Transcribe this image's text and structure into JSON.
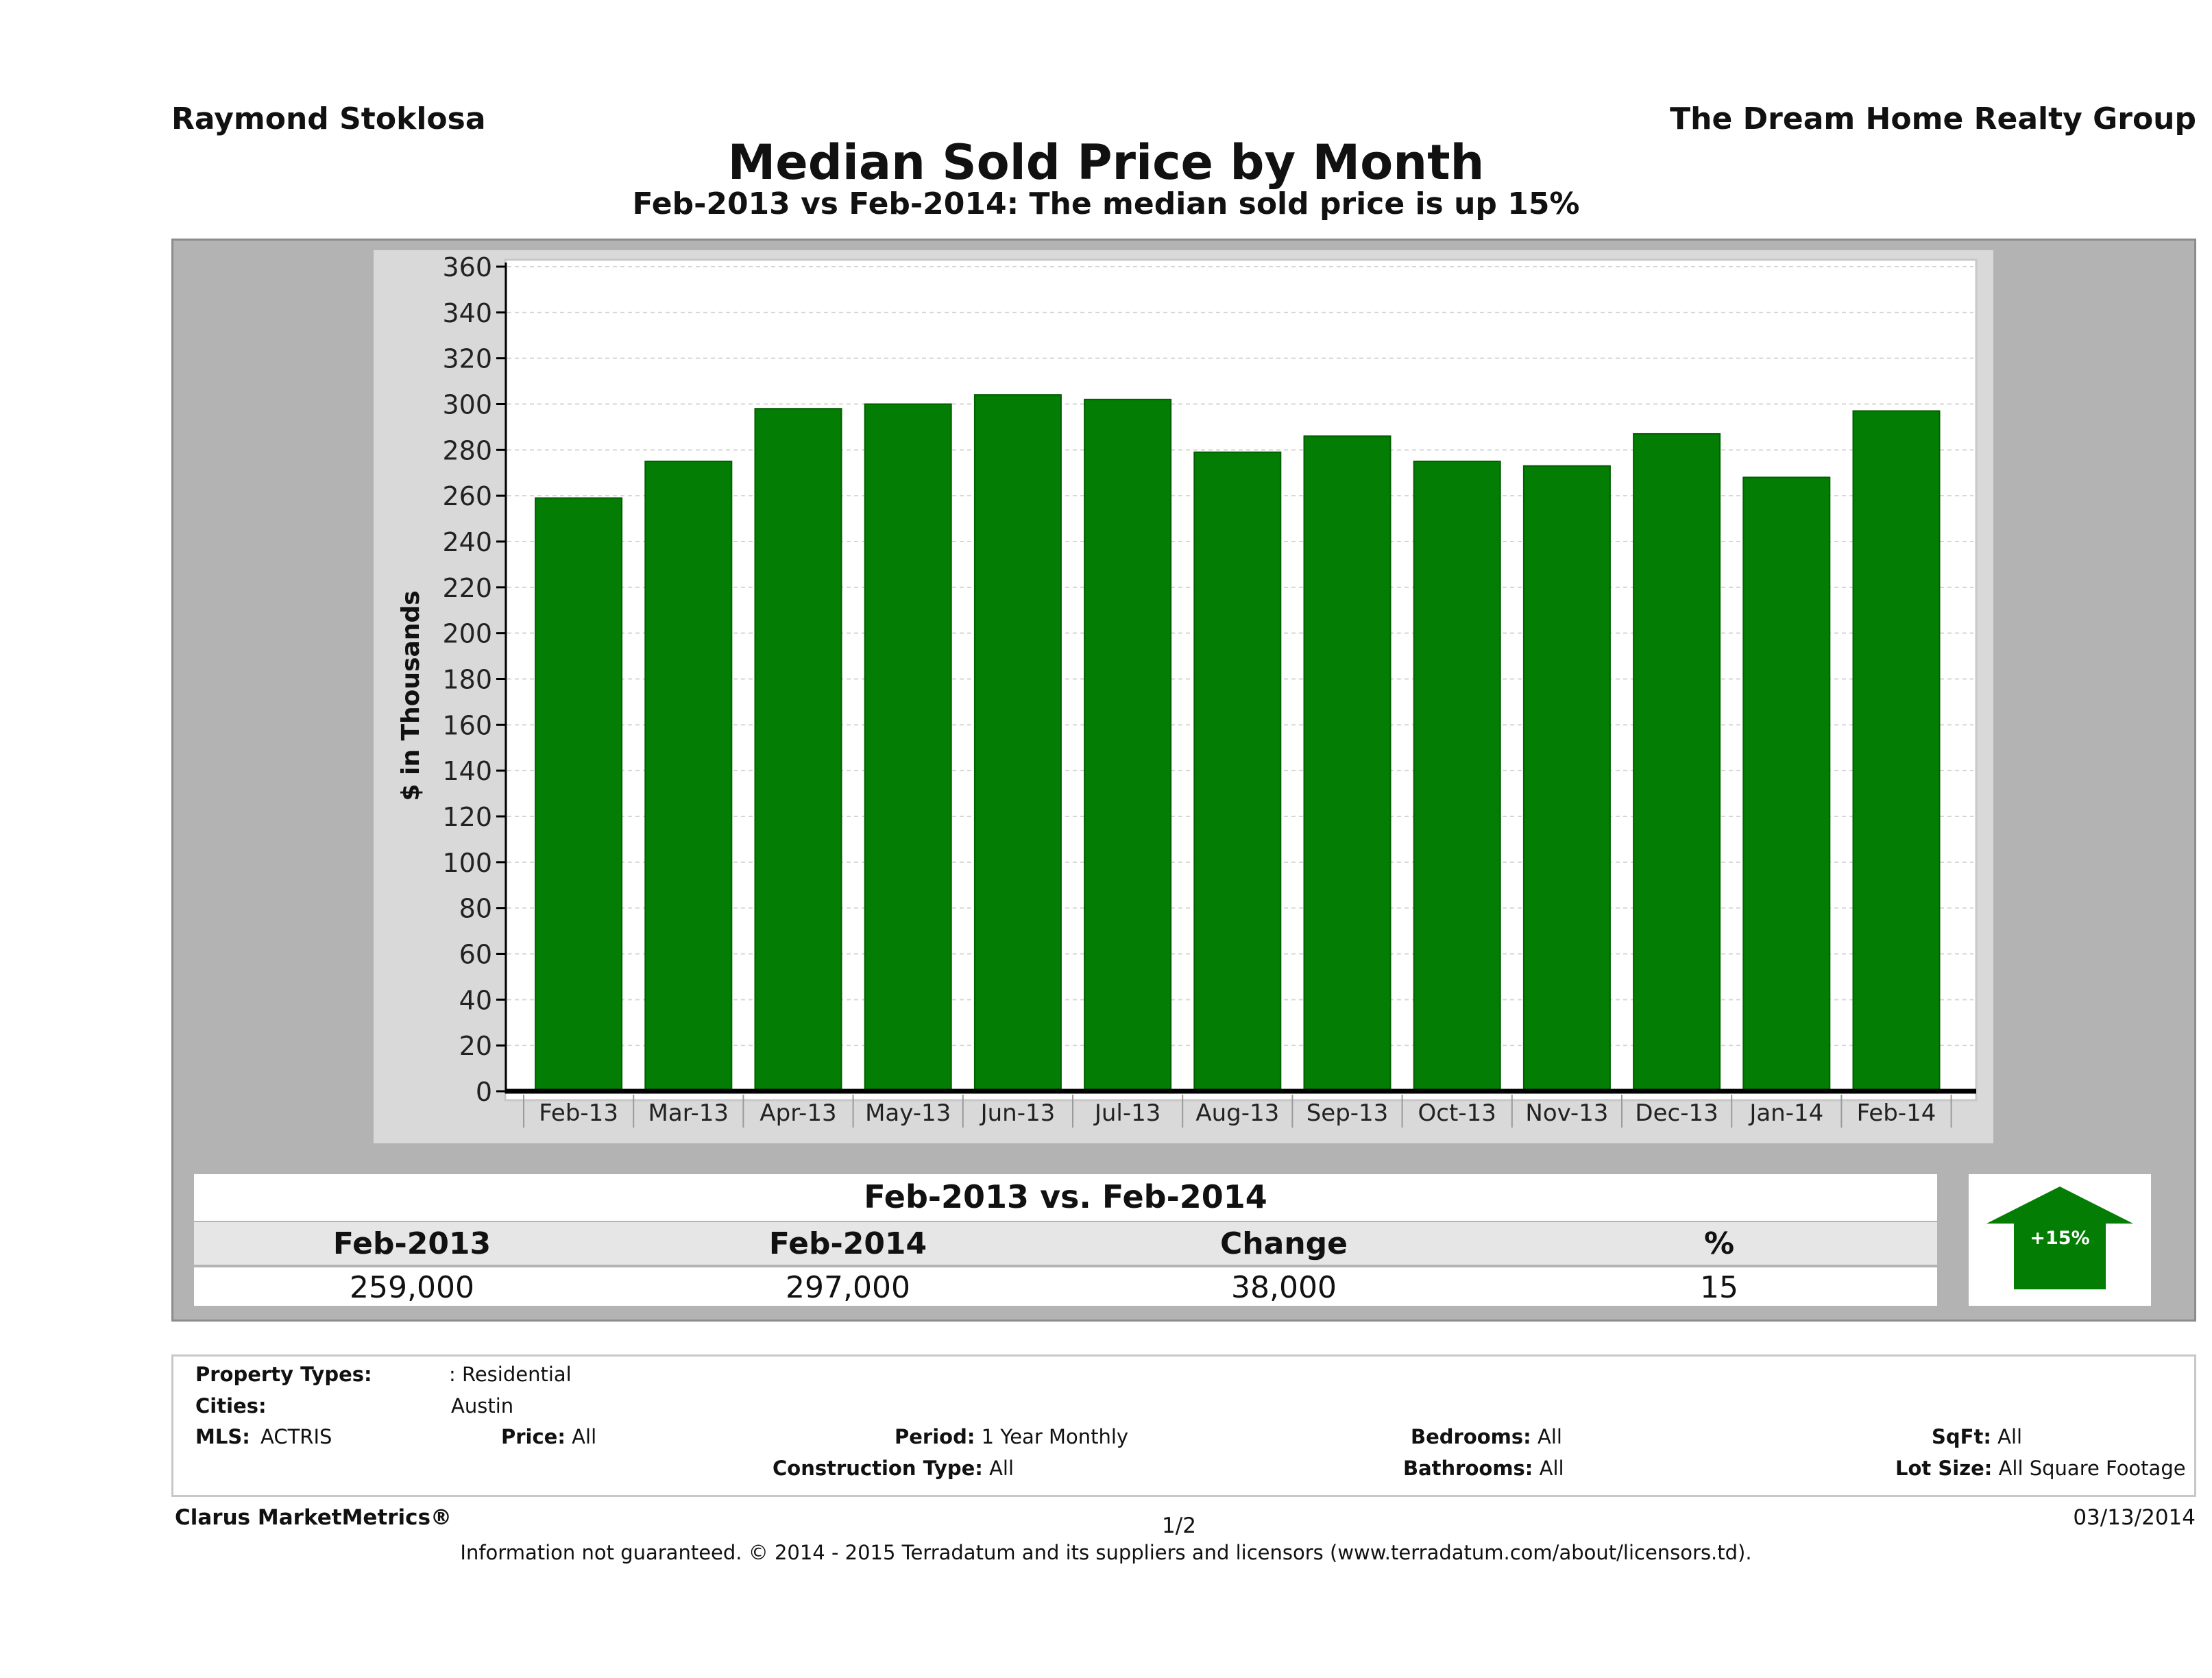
{
  "header": {
    "agent": "Raymond Stoklosa",
    "company": "The Dream Home Realty Group",
    "title": "Median Sold Price by Month",
    "subtitle": "Feb-2013 vs Feb-2014: The median sold price is up 15%"
  },
  "chart_data": {
    "type": "bar",
    "title": "Median Sold Price by Month",
    "ylabel": "$ in Thousands",
    "xlabel": "",
    "ylim": [
      0,
      360
    ],
    "yticks": [
      0,
      20,
      40,
      60,
      80,
      100,
      120,
      140,
      160,
      180,
      200,
      220,
      240,
      260,
      280,
      300,
      320,
      340,
      360
    ],
    "grid": true,
    "categories": [
      "Feb-13",
      "Mar-13",
      "Apr-13",
      "May-13",
      "Jun-13",
      "Jul-13",
      "Aug-13",
      "Sep-13",
      "Oct-13",
      "Nov-13",
      "Dec-13",
      "Jan-14",
      "Feb-14"
    ],
    "values": [
      259,
      275,
      298,
      300,
      304,
      302,
      279,
      286,
      275,
      273,
      287,
      268,
      297
    ],
    "bar_color": "#037d03"
  },
  "summary": {
    "title": "Feb-2013 vs. Feb-2014",
    "headers": [
      "Feb-2013",
      "Feb-2014",
      "Change",
      "%"
    ],
    "values": [
      "259,000",
      "297,000",
      "38,000",
      "15"
    ],
    "badge": "+15%",
    "badge_direction": "up",
    "badge_color": "#037d03"
  },
  "info": {
    "property_types_label": "Property Types:",
    "property_types_value": ": Residential",
    "cities_label": "Cities:",
    "cities_value": "Austin",
    "mls_label": "MLS:",
    "mls_value": "ACTRIS",
    "price_label": "Price:",
    "price_value": "All",
    "period_label": "Period:",
    "period_value": "1 Year Monthly",
    "construction_label": "Construction Type:",
    "construction_value": "All",
    "bedrooms_label": "Bedrooms:",
    "bedrooms_value": "All",
    "bathrooms_label": "Bathrooms:",
    "bathrooms_value": "All",
    "sqft_label": "SqFt:",
    "sqft_value": "All",
    "lotsize_label": "Lot Size:",
    "lotsize_value": "All Square Footage"
  },
  "footer": {
    "brand": "Clarus MarketMetrics®",
    "page": "1/2",
    "date": "03/13/2014",
    "disclaimer": "Information not guaranteed. © 2014 - 2015 Terradatum and its suppliers and licensors (www.terradatum.com/about/licensors.td)."
  }
}
